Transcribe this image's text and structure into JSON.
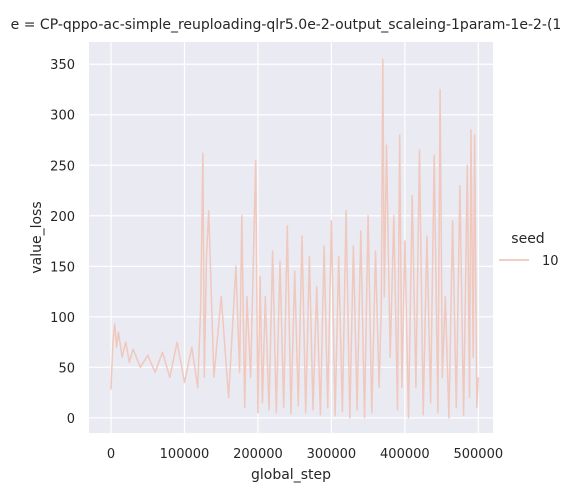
{
  "chart_data": {
    "type": "line",
    "title": "e = CP-qppo-ac-simple_reuploading-qlr5.0e-2-output_scaleing-1param-1e-2-(1",
    "xlabel": "global_step",
    "ylabel": "value_loss",
    "xlim": [
      -30000,
      520000
    ],
    "ylim": [
      -15,
      372
    ],
    "x_ticks": [
      0,
      100000,
      200000,
      300000,
      400000,
      500000
    ],
    "x_tick_labels": [
      "0",
      "100000",
      "200000",
      "300000",
      "400000",
      "500000"
    ],
    "y_ticks": [
      0,
      50,
      100,
      150,
      200,
      250,
      300,
      350
    ],
    "y_tick_labels": [
      "0",
      "50",
      "100",
      "150",
      "200",
      "250",
      "300",
      "350"
    ],
    "grid": true,
    "background": "#eaeaf2",
    "legend": {
      "title": "seed",
      "placement": "right",
      "entries": [
        "10"
      ]
    },
    "series": [
      {
        "name": "10",
        "color": "#f0c8bd",
        "x": [
          0,
          2500,
          5000,
          7500,
          10000,
          15000,
          20000,
          25000,
          30000,
          40000,
          50000,
          60000,
          70000,
          80000,
          90000,
          100000,
          110000,
          118000,
          122000,
          125000,
          127000,
          130000,
          133000,
          140000,
          150000,
          160000,
          170000,
          175000,
          178000,
          182000,
          185000,
          190000,
          197000,
          200000,
          203000,
          206000,
          210000,
          215000,
          220000,
          225000,
          230000,
          235000,
          240000,
          245000,
          250000,
          255000,
          260000,
          265000,
          270000,
          275000,
          280000,
          285000,
          290000,
          295000,
          300000,
          305000,
          310000,
          315000,
          320000,
          325000,
          330000,
          335000,
          340000,
          345000,
          350000,
          355000,
          360000,
          365000,
          368000,
          370000,
          372000,
          375000,
          380000,
          385000,
          390000,
          393000,
          396000,
          400000,
          405000,
          410000,
          415000,
          420000,
          425000,
          430000,
          435000,
          440000,
          445000,
          448000,
          451000,
          455000,
          460000,
          465000,
          470000,
          475000,
          480000,
          485000,
          488000,
          490000,
          493000,
          495000,
          498000,
          500000
        ],
        "y": [
          28,
          75,
          93,
          70,
          85,
          60,
          75,
          55,
          68,
          50,
          62,
          45,
          65,
          40,
          75,
          35,
          70,
          30,
          110,
          262,
          40,
          160,
          205,
          40,
          120,
          20,
          150,
          45,
          200,
          10,
          120,
          40,
          255,
          5,
          140,
          15,
          120,
          8,
          165,
          5,
          155,
          10,
          190,
          4,
          145,
          12,
          180,
          5,
          160,
          8,
          130,
          3,
          170,
          10,
          195,
          2,
          160,
          6,
          205,
          0,
          170,
          8,
          185,
          0,
          200,
          5,
          165,
          30,
          110,
          355,
          120,
          270,
          60,
          200,
          8,
          280,
          30,
          175,
          0,
          220,
          30,
          265,
          3,
          180,
          15,
          260,
          5,
          325,
          40,
          120,
          0,
          195,
          10,
          230,
          2,
          250,
          20,
          285,
          60,
          280,
          10,
          40
        ]
      }
    ]
  }
}
